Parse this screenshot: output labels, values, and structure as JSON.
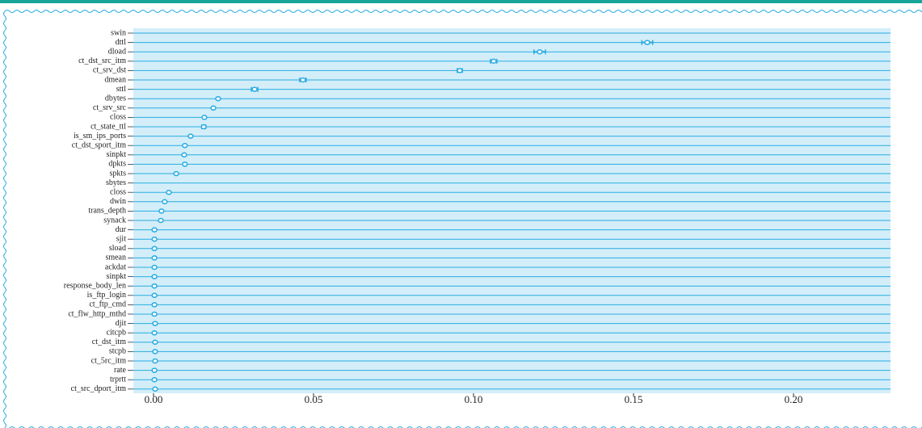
{
  "chart_data": {
    "type": "dot",
    "categories": [
      "swin",
      "dttl",
      "dload",
      "ct_dst_src_itm",
      "ct_srv_dst",
      "dmean",
      "sttl",
      "dbytes",
      "ct_srv_src",
      "closs",
      "ct_state_ttl",
      "is_sm_ips_ports",
      "ct_dst_sport_itm",
      "sinpkt",
      "dpkts",
      "spkts",
      "sbytes",
      "closs",
      "dwin",
      "trans_depth",
      "synack",
      "dur",
      "sjit",
      "sload",
      "smean",
      "ackdat",
      "sinpkt",
      "response_body_len",
      "is_ftp_login",
      "ct_ftp_cmd",
      "ct_flw_http_mthd",
      "djit",
      "citcpb",
      "ct_dst_itm",
      "stcpb",
      "ct_5rc_itm",
      "rate",
      "trprtt",
      "ct_src_dport_itm"
    ],
    "values": [
      null,
      0.1543,
      0.1207,
      0.1063,
      0.0957,
      0.0467,
      0.0316,
      0.0202,
      0.0187,
      0.0159,
      0.0157,
      0.0116,
      0.0098,
      0.0096,
      0.0098,
      0.0071,
      null,
      0.0048,
      0.0035,
      0.0025,
      0.0023,
      0.0003,
      0.0003,
      0.0003,
      0.0003,
      0.0003,
      0.0003,
      0.0003,
      0.0003,
      0.0003,
      0.0003,
      0.0005,
      0.0003,
      0.0005,
      0.0005,
      0.0005,
      0.0003,
      0.0003,
      0.0005
    ],
    "errors": [
      null,
      0.0017,
      0.0018,
      0.001,
      0.0008,
      0.001,
      0.001,
      0.0002,
      0.0002,
      0.0002,
      0.0006,
      0.0002,
      0.0002,
      0.0002,
      0.0003,
      0.0003,
      null,
      0.0002,
      0.0001,
      0.0001,
      0.0001,
      0.0002,
      0.0002,
      0.0002,
      0.0002,
      0.0002,
      0.0002,
      0.0002,
      0.0002,
      0.0002,
      0.0002,
      0.0001,
      0.0002,
      0.0001,
      0.0001,
      0.0001,
      0.0002,
      0.0002,
      0.0001
    ],
    "xlim": [
      -0.0063,
      0.2303
    ],
    "xticks": [
      {
        "value": 0,
        "label": "0.00"
      },
      0.05,
      {
        "value": 0.1,
        "label": "0.10"
      },
      0.15,
      {
        "value": 0.2,
        "label": "0.20"
      }
    ],
    "color": "#29abe2",
    "background": "#d3eef9"
  }
}
